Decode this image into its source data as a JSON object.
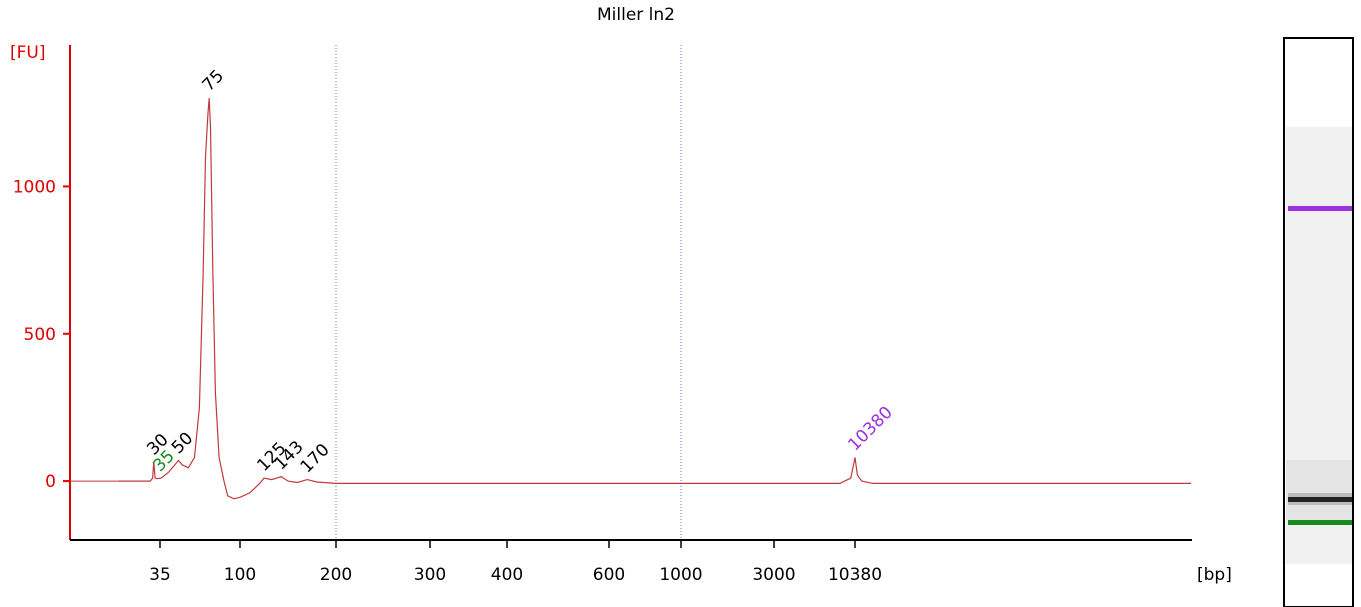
{
  "chart_data": {
    "type": "line",
    "title": "Miller ln2",
    "ylabel": "[FU]",
    "xlabel": "[bp]",
    "axis_color": "#e00000",
    "line_color": "#c0393b",
    "ylim": [
      -200,
      1480
    ],
    "yticks": [
      0,
      500,
      1000
    ],
    "xticks": [
      35,
      100,
      200,
      300,
      400,
      600,
      1000,
      3000,
      10380
    ],
    "ladder_lines": [
      200,
      1000
    ],
    "series": [
      {
        "name": "Miller ln2",
        "color": "#c0393b",
        "x": [
          1,
          27,
          29,
          30,
          31,
          33,
          36,
          42,
          48,
          50,
          53,
          58,
          63,
          67,
          70,
          72,
          74,
          75,
          76,
          78,
          80,
          83,
          87,
          90,
          95,
          100,
          110,
          120,
          125,
          133,
          143,
          150,
          160,
          170,
          180,
          200,
          1000,
          3000,
          9000,
          10000,
          10380,
          10600,
          11000,
          12000,
          41000
        ],
        "values": [
          0,
          0,
          10,
          65,
          10,
          8,
          10,
          30,
          60,
          70,
          55,
          45,
          80,
          250,
          700,
          1100,
          1250,
          1300,
          1200,
          700,
          300,
          80,
          0,
          -50,
          -60,
          -55,
          -40,
          -10,
          10,
          5,
          15,
          0,
          -5,
          5,
          -3,
          -8,
          -8,
          -8,
          -8,
          10,
          80,
          20,
          0,
          -8,
          -8
        ]
      }
    ],
    "peaks": [
      {
        "value": 30,
        "color": "#000000"
      },
      {
        "value": 35,
        "color": "#1a8a1a"
      },
      {
        "value": 50,
        "color": "#000000"
      },
      {
        "value": 75,
        "color": "#000000"
      },
      {
        "value": 125,
        "color": "#000000"
      },
      {
        "value": 143,
        "color": "#000000"
      },
      {
        "value": 170,
        "color": "#000000"
      },
      {
        "value": 10380,
        "color": "#9b30e0"
      }
    ]
  }
}
